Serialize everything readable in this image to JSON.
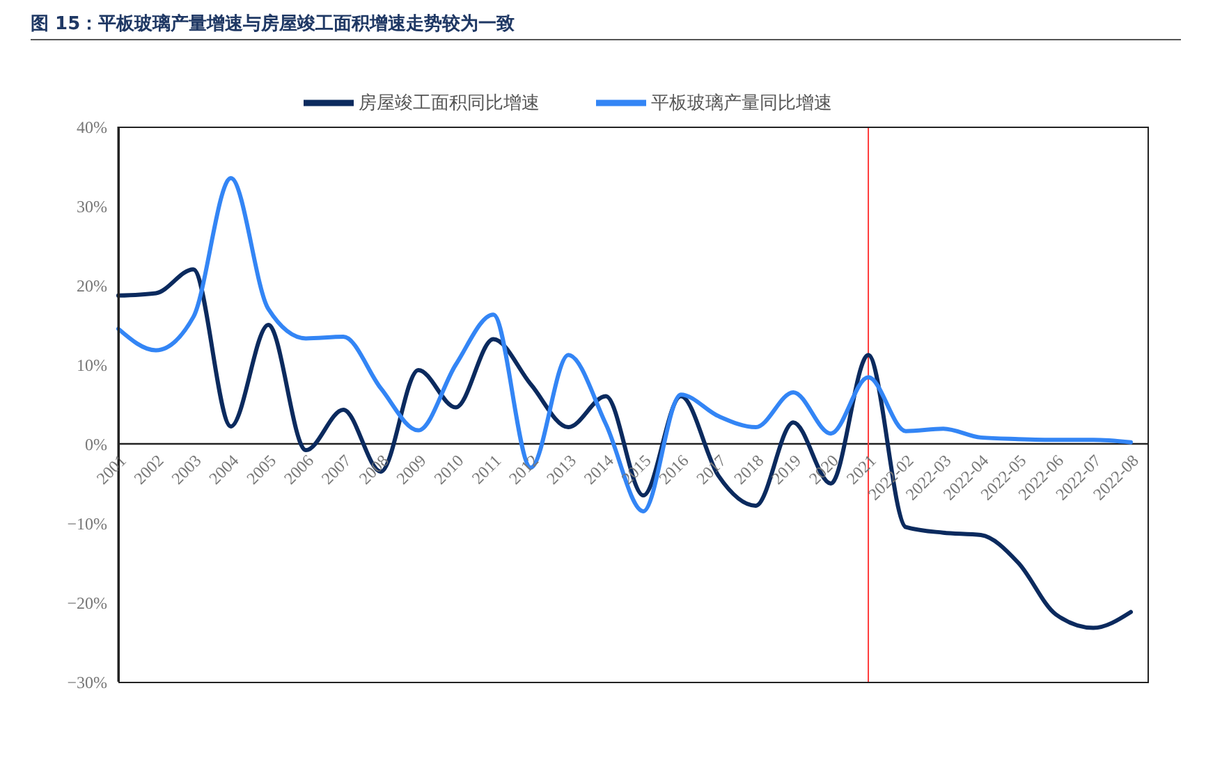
{
  "chart_data": {
    "type": "line",
    "title": "图 15：平板玻璃产量增速与房屋竣工面积增速走势较为一致",
    "categories": [
      "2001",
      "2002",
      "2003",
      "2004",
      "2005",
      "2006",
      "2007",
      "2008",
      "2009",
      "2010",
      "2011",
      "2012",
      "2013",
      "2014",
      "2015",
      "2016",
      "2017",
      "2018",
      "2019",
      "2020",
      "2021",
      "2022-02",
      "2022-03",
      "2022-04",
      "2022-05",
      "2022-06",
      "2022-07",
      "2022-08"
    ],
    "series": [
      {
        "name": "房屋竣工面积同比增速",
        "color": "#0b2a5e",
        "values": [
          18.7,
          19,
          22,
          2.2,
          15,
          -0.8,
          4.3,
          -3.5,
          9.3,
          4.6,
          13.2,
          7.5,
          2.1,
          6,
          -6.5,
          6,
          -4,
          -7.8,
          2.7,
          -5,
          11.2,
          -10.5,
          -11.2,
          -11.5,
          -15,
          -21.5,
          -23.2,
          -21.2
        ]
      },
      {
        "name": "平板玻璃产量同比增速",
        "color": "#3385f5",
        "values": [
          14.5,
          11.8,
          16,
          33.5,
          17,
          13.3,
          13.5,
          7,
          1.7,
          10,
          16.3,
          -3,
          11.2,
          2.5,
          -8.5,
          6.2,
          3.5,
          2.1,
          6.5,
          1.3,
          8.4,
          1.6,
          1.9,
          0.8,
          0.6,
          0.5,
          0.5,
          0.2
        ]
      }
    ],
    "ylim": [
      -30,
      40
    ],
    "yticks": [
      {
        "value": -30,
        "label": "−30%"
      },
      {
        "value": -20,
        "label": "−20%"
      },
      {
        "value": -10,
        "label": "−10%"
      },
      {
        "value": 0,
        "label": "0%"
      },
      {
        "value": 10,
        "label": "10%"
      },
      {
        "value": 20,
        "label": "20%"
      },
      {
        "value": 30,
        "label": "30%"
      },
      {
        "value": 40,
        "label": "40%"
      }
    ],
    "ref_lines": [
      {
        "axis": "x",
        "value": "2021",
        "color": "#ff3b3b"
      }
    ],
    "legend": "top",
    "grid": false,
    "marker": "none",
    "line_style": "solid"
  }
}
